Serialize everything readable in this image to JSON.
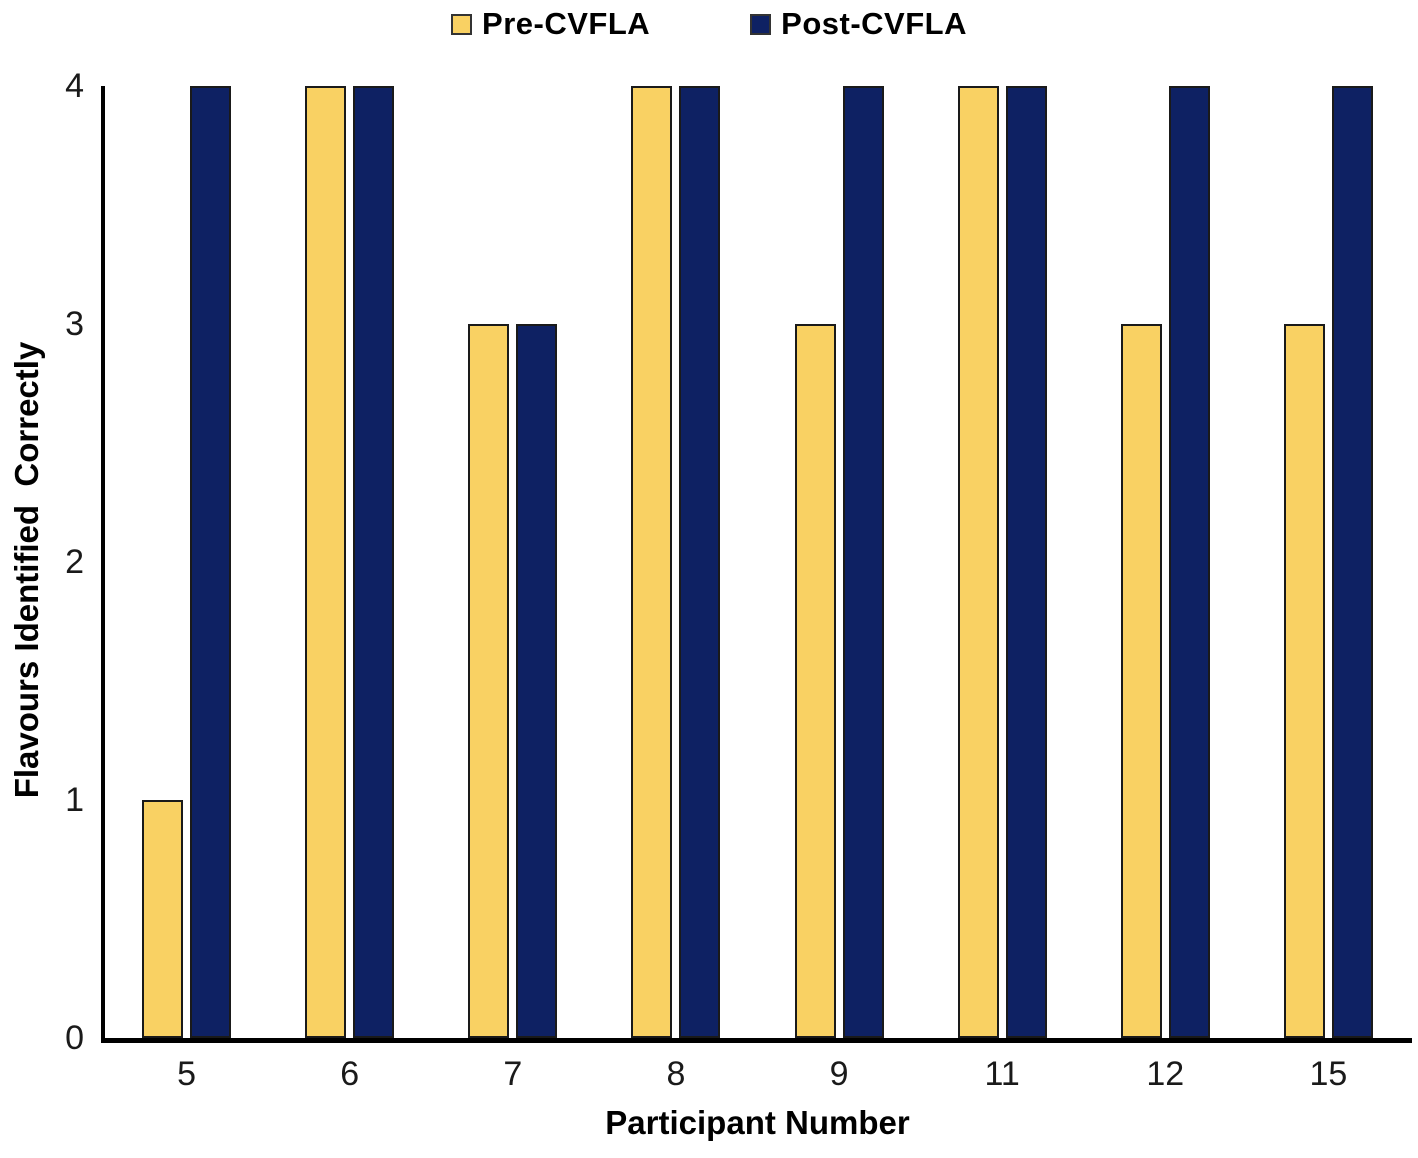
{
  "chart_data": {
    "type": "bar",
    "title": "",
    "categories": [
      "5",
      "6",
      "7",
      "8",
      "9",
      "11",
      "12",
      "15"
    ],
    "series": [
      {
        "name": "Pre-CVFLA",
        "color": "#F9D163",
        "border_color": "#1a1a1a",
        "values": [
          1,
          4,
          3,
          4,
          3,
          4,
          3,
          3
        ]
      },
      {
        "name": "Post-CVFLA",
        "color": "#0E2163",
        "border_color": "#1a1a1a",
        "values": [
          4,
          4,
          3,
          4,
          4,
          4,
          4,
          4
        ]
      }
    ],
    "xlabel": "Participant Number",
    "ylabel": "Flavours Identified  Correctly",
    "ylim": [
      0,
      4
    ],
    "yticks": [
      "0",
      "1",
      "2",
      "3",
      "4"
    ],
    "legend_position": "top-center",
    "grid": false,
    "axis_color": "#000000",
    "background_color": "#ffffff"
  }
}
